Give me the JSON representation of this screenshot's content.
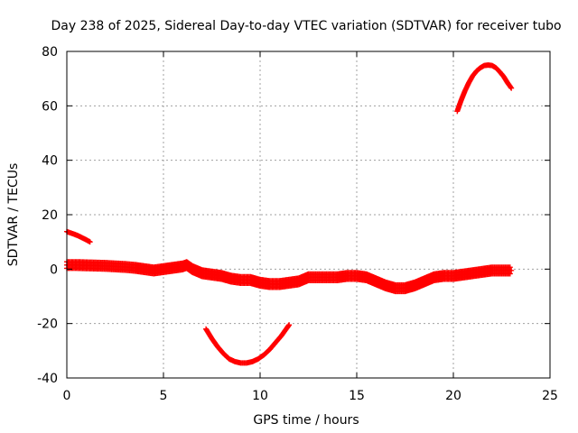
{
  "chart_data": {
    "type": "scatter",
    "title": "Day 238 of 2025, Sidereal Day-to-day VTEC variation (SDTVAR) for receiver tubo",
    "xlabel": "GPS time / hours",
    "ylabel": "SDTVAR / TECUs",
    "xlim": [
      0,
      25
    ],
    "ylim": [
      -40,
      80
    ],
    "xticks": [
      0,
      5,
      10,
      15,
      20,
      25
    ],
    "yticks": [
      -40,
      -20,
      0,
      20,
      40,
      60,
      80
    ],
    "xtick_labels": [
      "0",
      "5",
      "10",
      "15",
      "20",
      "25"
    ],
    "ytick_labels": [
      "-40",
      "-20",
      "0",
      "20",
      "40",
      "60",
      "80"
    ],
    "grid": true,
    "marker": "plus",
    "color": "#ff0000",
    "series": [
      {
        "name": "main band",
        "x": [
          0.0,
          0.5,
          1.0,
          1.5,
          2.0,
          2.5,
          3.0,
          3.5,
          4.0,
          4.5,
          5.0,
          5.5,
          6.0,
          6.2,
          6.5,
          7.0,
          7.5,
          8.0,
          8.5,
          9.0,
          9.5,
          10.0,
          10.5,
          11.0,
          11.5,
          12.0,
          12.5,
          13.0,
          13.5,
          14.0,
          14.5,
          15.0,
          15.5,
          16.0,
          16.5,
          17.0,
          17.5,
          18.0,
          18.5,
          19.0,
          19.5,
          20.0,
          20.5,
          21.0,
          21.5,
          22.0,
          22.5,
          23.0
        ],
        "y": [
          1.5,
          1.5,
          1.4,
          1.3,
          1.2,
          1.0,
          0.8,
          0.5,
          0.0,
          -0.5,
          0.0,
          0.5,
          1.0,
          1.5,
          0.0,
          -1.5,
          -2.0,
          -2.5,
          -3.5,
          -4.0,
          -4.0,
          -5.0,
          -5.5,
          -5.5,
          -5.0,
          -4.5,
          -3.0,
          -3.0,
          -3.0,
          -3.0,
          -2.5,
          -2.5,
          -3.0,
          -4.5,
          -6.0,
          -7.0,
          -7.0,
          -6.0,
          -4.5,
          -3.0,
          -2.5,
          -2.5,
          -2.0,
          -1.5,
          -1.0,
          -0.5,
          -0.5,
          -0.5
        ]
      },
      {
        "name": "arc 0-1.2h",
        "x": [
          0.0,
          0.2,
          0.4,
          0.6,
          0.8,
          1.0,
          1.2
        ],
        "y": [
          13.8,
          13.3,
          12.8,
          12.2,
          11.5,
          10.8,
          10.0
        ]
      },
      {
        "name": "arc 7.2-11.5h",
        "x": [
          7.2,
          7.5,
          7.8,
          8.1,
          8.4,
          8.7,
          9.0,
          9.3,
          9.6,
          9.9,
          10.2,
          10.5,
          10.8,
          11.1,
          11.4,
          11.5
        ],
        "y": [
          -22.0,
          -25.5,
          -28.5,
          -31.0,
          -33.0,
          -34.0,
          -34.5,
          -34.5,
          -34.0,
          -33.0,
          -31.5,
          -29.5,
          -27.0,
          -24.5,
          -21.5,
          -20.5
        ]
      },
      {
        "name": "arc 20.2-23h",
        "x": [
          20.2,
          20.4,
          20.6,
          20.8,
          21.0,
          21.2,
          21.4,
          21.6,
          21.8,
          22.0,
          22.2,
          22.4,
          22.6,
          22.8,
          23.0
        ],
        "y": [
          58.0,
          62.0,
          65.5,
          68.5,
          71.0,
          72.8,
          74.0,
          74.8,
          75.0,
          74.8,
          74.0,
          72.5,
          70.8,
          68.5,
          66.5
        ]
      }
    ]
  }
}
